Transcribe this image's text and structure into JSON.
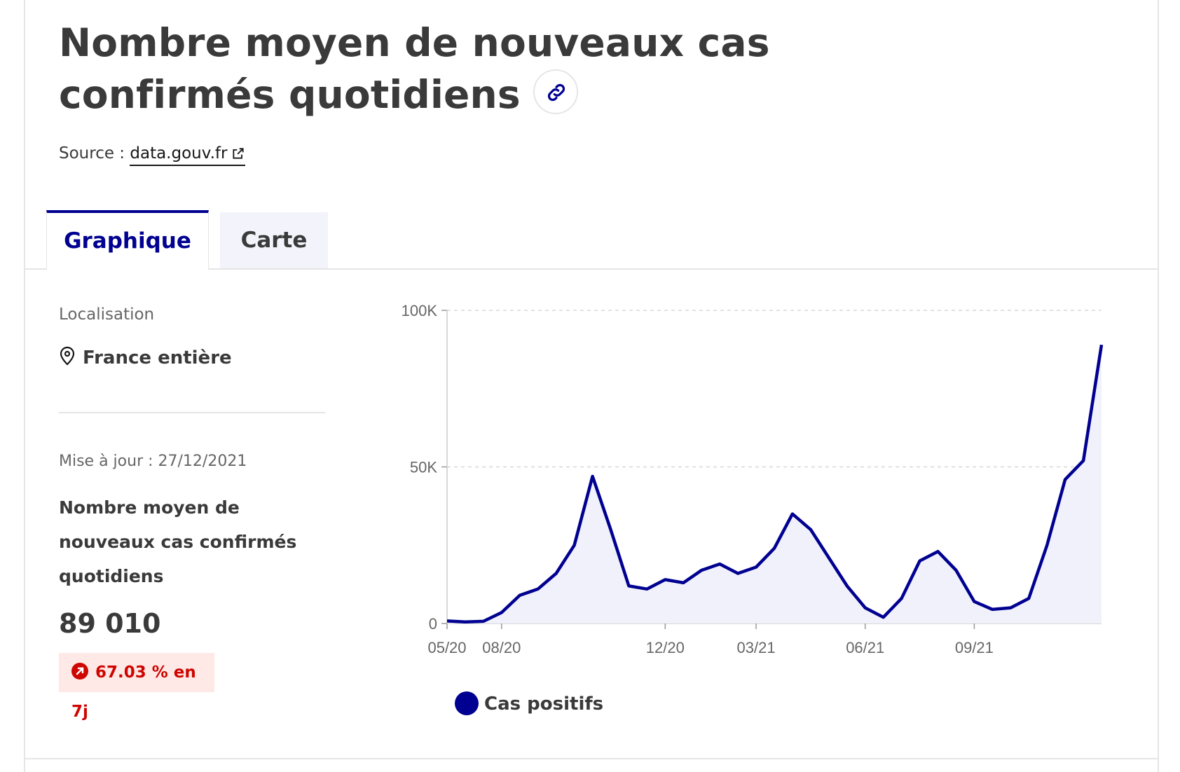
{
  "header": {
    "title": "Nombre moyen de nouveaux cas confirmés quotidiens",
    "source_label": "Source :",
    "source_link": "data.gouv.fr"
  },
  "tabs": [
    {
      "label": "Graphique",
      "active": true
    },
    {
      "label": "Carte",
      "active": false
    }
  ],
  "sidebar": {
    "location_label": "Localisation",
    "location_value": "France entière",
    "update_text": "Mise à jour : 27/12/2021",
    "indicator_title": "Nombre moyen de nouveaux cas confirmés quotidiens",
    "indicator_value": "89 010",
    "trend_text": "67.03 % en 7j"
  },
  "colors": {
    "accent": "#000091",
    "trend_up_bg": "#ffe9e6",
    "trend_up_text": "#ce0500"
  },
  "chart_data": {
    "type": "area",
    "series": [
      {
        "name": "Cas positifs",
        "color": "#000091",
        "x": [
          "05/20",
          "06/20",
          "07/20",
          "08/20",
          "09/20",
          "09/20",
          "10/20",
          "10/20",
          "11/20",
          "11/20",
          "11/20",
          "12/20",
          "12/20",
          "01/21",
          "01/21",
          "02/21",
          "02/21",
          "03/21",
          "03/21",
          "04/21",
          "04/21",
          "05/21",
          "05/21",
          "06/21",
          "06/21",
          "07/21",
          "07/21",
          "08/21",
          "08/21",
          "09/21",
          "09/21",
          "10/21",
          "10/21",
          "11/21",
          "11/21",
          "12/21",
          "12/21"
        ],
        "values": [
          800,
          500,
          700,
          3500,
          9000,
          11000,
          16000,
          25000,
          47000,
          30000,
          12000,
          11000,
          14000,
          13000,
          17000,
          19000,
          16000,
          18000,
          24000,
          35000,
          30000,
          21000,
          12000,
          5000,
          2000,
          8000,
          20000,
          23000,
          17000,
          7000,
          4500,
          5000,
          8000,
          25000,
          46000,
          52000,
          89000
        ]
      }
    ],
    "x_ticks": [
      "05/20",
      "08/20",
      "12/20",
      "03/21",
      "06/21",
      "09/21"
    ],
    "y_ticks": [
      "0",
      "50K",
      "100K"
    ],
    "ylim": [
      0,
      100000
    ],
    "grid": "horizontal-dashed",
    "legend_position": "bottom-left"
  }
}
